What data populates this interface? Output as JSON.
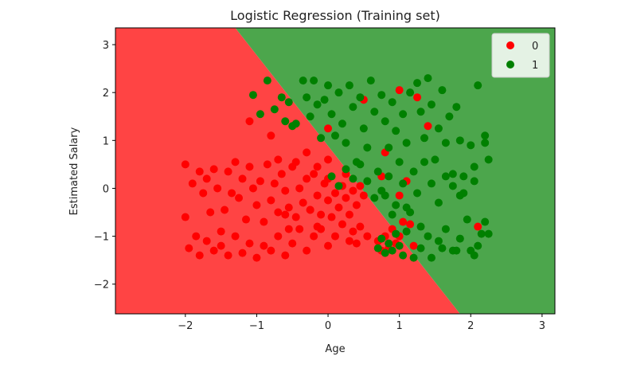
{
  "chart_data": {
    "type": "scatter",
    "title": "Logistic Regression (Training set)",
    "xlabel": "Age",
    "ylabel": "Estimated Salary",
    "xlim": [
      -2.98,
      3.18
    ],
    "ylim": [
      -2.62,
      3.35
    ],
    "xticks": [
      -2,
      -1,
      0,
      1,
      2,
      3
    ],
    "yticks": [
      -2,
      -1,
      0,
      1,
      2,
      3
    ],
    "decision_boundary": {
      "points": [
        [
          -1.3,
          3.35
        ],
        [
          1.85,
          -2.62
        ]
      ]
    },
    "regions": [
      {
        "class": "0",
        "color": "#ff4444"
      },
      {
        "class": "1",
        "color": "#4ca64c"
      }
    ],
    "legend": {
      "placement": "top-right"
    },
    "series": [
      {
        "name": "0",
        "color": "#ff0000",
        "points": [
          [
            -2.0,
            0.5
          ],
          [
            -1.9,
            0.1
          ],
          [
            -1.8,
            0.35
          ],
          [
            -1.75,
            -0.1
          ],
          [
            -1.7,
            0.2
          ],
          [
            -1.65,
            -0.5
          ],
          [
            -1.6,
            0.4
          ],
          [
            -1.55,
            0.0
          ],
          [
            -1.5,
            -0.9
          ],
          [
            -1.45,
            -0.45
          ],
          [
            -1.4,
            0.35
          ],
          [
            -1.35,
            -0.1
          ],
          [
            -1.3,
            0.55
          ],
          [
            -1.25,
            -0.2
          ],
          [
            -1.2,
            0.2
          ],
          [
            -1.15,
            -0.65
          ],
          [
            -1.1,
            0.45
          ],
          [
            -1.05,
            0.0
          ],
          [
            -1.0,
            -0.35
          ],
          [
            -0.95,
            0.15
          ],
          [
            -0.9,
            -0.7
          ],
          [
            -0.85,
            0.5
          ],
          [
            -0.8,
            -0.25
          ],
          [
            -0.75,
            0.1
          ],
          [
            -0.7,
            -0.5
          ],
          [
            -0.65,
            0.3
          ],
          [
            -0.6,
            -0.05
          ],
          [
            -0.55,
            -0.4
          ],
          [
            -0.5,
            0.45
          ],
          [
            -0.45,
            -0.6
          ],
          [
            -0.4,
            0.0
          ],
          [
            -0.35,
            -0.3
          ],
          [
            -0.3,
            0.2
          ],
          [
            -0.25,
            -0.45
          ],
          [
            -0.2,
            0.3
          ],
          [
            -0.15,
            -0.15
          ],
          [
            -0.1,
            -0.55
          ],
          [
            -0.05,
            0.1
          ],
          [
            0.0,
            -0.25
          ],
          [
            0.05,
            -0.6
          ],
          [
            0.1,
            -0.1
          ],
          [
            0.15,
            -0.4
          ],
          [
            0.2,
            0.05
          ],
          [
            0.25,
            -0.2
          ],
          [
            0.3,
            -0.55
          ],
          [
            0.35,
            -0.05
          ],
          [
            0.4,
            -0.35
          ],
          [
            0.45,
            -0.8
          ],
          [
            0.5,
            -0.15
          ],
          [
            0.55,
            -1.0
          ],
          [
            -2.0,
            -0.6
          ],
          [
            -1.95,
            -1.25
          ],
          [
            -1.85,
            -1.0
          ],
          [
            -1.8,
            -1.4
          ],
          [
            -1.7,
            -1.1
          ],
          [
            -1.6,
            -1.3
          ],
          [
            -1.5,
            -1.2
          ],
          [
            -1.4,
            -1.4
          ],
          [
            -1.3,
            -1.0
          ],
          [
            -1.2,
            -1.35
          ],
          [
            -1.1,
            -1.15
          ],
          [
            -1.0,
            -1.45
          ],
          [
            -0.9,
            -1.2
          ],
          [
            -0.8,
            -1.3
          ],
          [
            -0.7,
            -1.0
          ],
          [
            -0.6,
            -1.4
          ],
          [
            -0.5,
            -1.15
          ],
          [
            -0.4,
            -0.85
          ],
          [
            -0.3,
            -1.3
          ],
          [
            -0.2,
            -1.0
          ],
          [
            -0.1,
            -0.85
          ],
          [
            0.0,
            -1.2
          ],
          [
            0.1,
            -1.0
          ],
          [
            0.2,
            -0.75
          ],
          [
            0.3,
            -1.1
          ],
          [
            0.35,
            -0.9
          ],
          [
            0.7,
            -1.1
          ],
          [
            0.75,
            -1.3
          ],
          [
            0.8,
            -1.0
          ],
          [
            0.85,
            -1.25
          ],
          [
            0.9,
            -0.85
          ],
          [
            0.95,
            -1.15
          ],
          [
            1.0,
            -1.0
          ],
          [
            1.05,
            -0.7
          ],
          [
            1.15,
            -0.75
          ],
          [
            1.2,
            -1.2
          ],
          [
            0.4,
            -1.15
          ],
          [
            -0.15,
            -0.8
          ],
          [
            -0.55,
            -0.85
          ],
          [
            -0.25,
            -0.45
          ],
          [
            -1.1,
            1.4
          ],
          [
            -0.8,
            1.1
          ],
          [
            -0.6,
            -0.55
          ],
          [
            -0.7,
            0.6
          ],
          [
            -0.45,
            0.55
          ],
          [
            -0.3,
            0.75
          ],
          [
            -0.15,
            0.45
          ],
          [
            0.0,
            0.6
          ],
          [
            0.25,
            0.3
          ],
          [
            0.45,
            0.05
          ],
          [
            0.0,
            0.2
          ],
          [
            0.0,
            1.25
          ],
          [
            0.5,
            1.85
          ],
          [
            1.0,
            2.05
          ],
          [
            1.25,
            1.9
          ],
          [
            1.4,
            1.3
          ],
          [
            0.8,
            0.75
          ],
          [
            0.75,
            0.25
          ],
          [
            1.0,
            -0.15
          ],
          [
            1.1,
            0.15
          ],
          [
            2.1,
            -0.8
          ]
        ]
      },
      {
        "name": "1",
        "color": "#008000",
        "points": [
          [
            -1.05,
            1.95
          ],
          [
            -0.95,
            1.55
          ],
          [
            -0.85,
            2.25
          ],
          [
            -0.75,
            1.65
          ],
          [
            -0.65,
            1.9
          ],
          [
            -0.6,
            1.4
          ],
          [
            -0.55,
            1.8
          ],
          [
            -0.5,
            1.3
          ],
          [
            -0.45,
            1.35
          ],
          [
            -0.35,
            2.25
          ],
          [
            -0.3,
            1.9
          ],
          [
            -0.25,
            1.5
          ],
          [
            -0.2,
            2.25
          ],
          [
            -0.15,
            1.75
          ],
          [
            -0.1,
            1.05
          ],
          [
            -0.05,
            1.85
          ],
          [
            0.0,
            2.15
          ],
          [
            0.05,
            1.55
          ],
          [
            0.1,
            1.1
          ],
          [
            0.15,
            2.0
          ],
          [
            0.2,
            1.35
          ],
          [
            0.25,
            0.95
          ],
          [
            0.3,
            2.15
          ],
          [
            0.35,
            1.7
          ],
          [
            0.4,
            0.55
          ],
          [
            0.45,
            1.9
          ],
          [
            0.5,
            1.25
          ],
          [
            0.55,
            0.85
          ],
          [
            0.6,
            2.25
          ],
          [
            0.65,
            1.6
          ],
          [
            0.7,
            0.35
          ],
          [
            0.75,
            1.95
          ],
          [
            0.8,
            1.4
          ],
          [
            0.85,
            0.85
          ],
          [
            0.9,
            1.8
          ],
          [
            0.95,
            1.2
          ],
          [
            1.0,
            0.55
          ],
          [
            1.05,
            1.55
          ],
          [
            1.1,
            0.95
          ],
          [
            1.15,
            2.0
          ],
          [
            1.2,
            0.35
          ],
          [
            1.25,
            2.2
          ],
          [
            1.3,
            1.6
          ],
          [
            1.35,
            1.05
          ],
          [
            1.4,
            2.3
          ],
          [
            1.45,
            1.75
          ],
          [
            1.5,
            0.6
          ],
          [
            1.55,
            1.25
          ],
          [
            1.6,
            2.05
          ],
          [
            1.65,
            0.95
          ],
          [
            1.7,
            1.5
          ],
          [
            1.75,
            0.05
          ],
          [
            1.8,
            1.7
          ],
          [
            1.85,
            1.0
          ],
          [
            1.9,
            0.25
          ],
          [
            2.0,
            0.9
          ],
          [
            2.05,
            0.15
          ],
          [
            2.1,
            2.15
          ],
          [
            2.2,
            1.1
          ],
          [
            2.2,
            0.95
          ],
          [
            0.05,
            0.25
          ],
          [
            0.15,
            0.05
          ],
          [
            0.25,
            0.4
          ],
          [
            0.35,
            0.2
          ],
          [
            0.45,
            0.5
          ],
          [
            0.55,
            0.15
          ],
          [
            0.65,
            -0.2
          ],
          [
            0.75,
            -0.05
          ],
          [
            0.85,
            0.25
          ],
          [
            0.95,
            -0.35
          ],
          [
            1.05,
            0.1
          ],
          [
            1.15,
            -0.5
          ],
          [
            1.25,
            -0.1
          ],
          [
            1.35,
            0.55
          ],
          [
            1.45,
            0.1
          ],
          [
            1.55,
            -0.3
          ],
          [
            1.65,
            0.25
          ],
          [
            1.75,
            0.3
          ],
          [
            1.85,
            -0.15
          ],
          [
            1.9,
            -0.1
          ],
          [
            0.7,
            -1.25
          ],
          [
            0.75,
            -1.05
          ],
          [
            0.8,
            -1.35
          ],
          [
            0.85,
            -1.15
          ],
          [
            0.9,
            -1.3
          ],
          [
            0.95,
            -0.95
          ],
          [
            1.0,
            -1.2
          ],
          [
            1.05,
            -1.4
          ],
          [
            1.1,
            -0.9
          ],
          [
            1.2,
            -1.45
          ],
          [
            1.3,
            -1.25
          ],
          [
            1.4,
            -1.0
          ],
          [
            1.45,
            -1.45
          ],
          [
            1.55,
            -1.1
          ],
          [
            1.65,
            -0.85
          ],
          [
            1.75,
            -1.3
          ],
          [
            1.85,
            -1.05
          ],
          [
            1.95,
            -0.65
          ],
          [
            2.05,
            -1.4
          ],
          [
            2.1,
            -1.2
          ],
          [
            2.15,
            -0.95
          ],
          [
            2.2,
            -0.7
          ],
          [
            2.25,
            -0.95
          ],
          [
            2.0,
            -1.3
          ],
          [
            1.8,
            -1.3
          ],
          [
            1.6,
            -1.25
          ],
          [
            1.3,
            -0.8
          ],
          [
            1.1,
            -0.4
          ],
          [
            0.9,
            -0.55
          ],
          [
            0.8,
            -0.15
          ],
          [
            2.05,
            0.45
          ],
          [
            2.25,
            0.6
          ]
        ]
      }
    ]
  }
}
